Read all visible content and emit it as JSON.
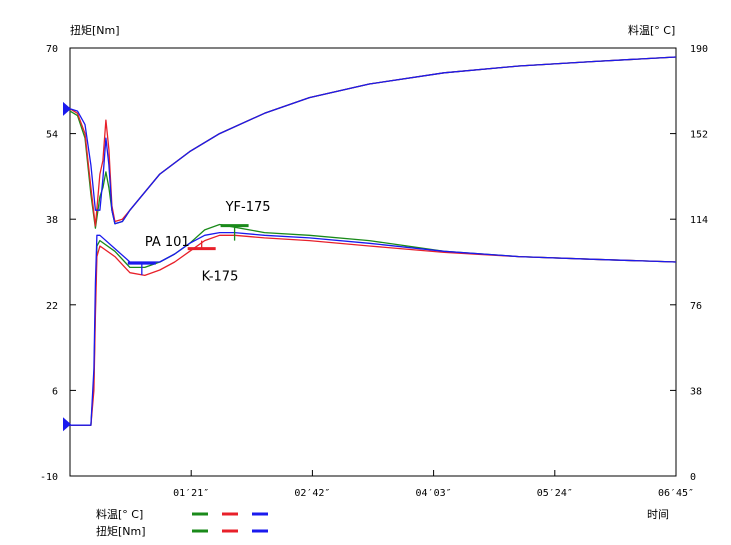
{
  "chart_data": {
    "type": "line",
    "ylabel_left": "扭矩[Nm]",
    "ylabel_right": "料温[° C]",
    "xlabel": "时间",
    "x_range": [
      0,
      405
    ],
    "y_left_range": [
      -10,
      70
    ],
    "y_right_range": [
      0,
      190
    ],
    "x_ticks": [
      {
        "value": 81,
        "label": "01′21″"
      },
      {
        "value": 162,
        "label": "02′42″"
      },
      {
        "value": 243,
        "label": "04′03″"
      },
      {
        "value": 324,
        "label": "05′24″"
      },
      {
        "value": 405,
        "label": "06′45″"
      }
    ],
    "y_left_ticks": [
      "-10",
      "6",
      "22",
      "38",
      "54",
      "70"
    ],
    "y_left_tick_values": [
      -10,
      6,
      22,
      38,
      54,
      70
    ],
    "y_right_ticks": [
      "0",
      "38",
      "76",
      "114",
      "152",
      "190"
    ],
    "y_right_tick_values": [
      0,
      38,
      76,
      114,
      152,
      190
    ],
    "colors": {
      "green": "#1a8a1a",
      "red": "#e8202a",
      "blue": "#1a1aee",
      "marker": "#1a1aee"
    },
    "series": [
      {
        "name": "料温 green",
        "axis": "right",
        "color": "#1a8a1a",
        "x": [
          0,
          5,
          10,
          14,
          17,
          20,
          22,
          24,
          26,
          28,
          30,
          35,
          40,
          50,
          60,
          80,
          100,
          130,
          160,
          200,
          250,
          300,
          350,
          405
        ],
        "values": [
          162,
          160,
          150,
          125,
          110,
          124,
          128,
          135,
          128,
          118,
          112,
          113,
          118,
          126,
          134,
          144,
          152,
          161,
          168,
          174,
          179,
          182,
          184,
          186
        ]
      },
      {
        "name": "料温 red",
        "axis": "right",
        "color": "#e8202a",
        "x": [
          0,
          5,
          10,
          14,
          17,
          20,
          22,
          24,
          26,
          28,
          30,
          35,
          40,
          50,
          60,
          80,
          100,
          130,
          160,
          200,
          250,
          300,
          350,
          405
        ],
        "values": [
          163,
          161,
          152,
          128,
          111,
          134,
          140,
          158,
          145,
          120,
          113,
          114,
          118,
          126,
          134,
          144,
          152,
          161,
          168,
          174,
          179,
          182,
          184,
          186
        ]
      },
      {
        "name": "料温 blue",
        "axis": "right",
        "color": "#1a1aee",
        "x": [
          0,
          5,
          10,
          14,
          17,
          20,
          22,
          24,
          26,
          28,
          30,
          35,
          40,
          50,
          60,
          80,
          100,
          130,
          160,
          200,
          250,
          300,
          350,
          405
        ],
        "values": [
          163,
          162,
          156,
          138,
          118,
          118,
          132,
          150,
          138,
          118,
          112,
          113,
          118,
          126,
          134,
          144,
          152,
          161,
          168,
          174,
          179,
          182,
          184,
          186
        ]
      },
      {
        "name": "扭矩 green",
        "axis": "left",
        "color": "#1a8a1a",
        "x": [
          0,
          12,
          14,
          16,
          17,
          18,
          20,
          30,
          40,
          50,
          60,
          70,
          80,
          90,
          100,
          110,
          130,
          160,
          200,
          250,
          300,
          350,
          405
        ],
        "values": [
          -0.5,
          -0.5,
          -0.5,
          8,
          22,
          33,
          34,
          32,
          29,
          29,
          30,
          31.5,
          33.5,
          36,
          37,
          36.5,
          35.5,
          35,
          34,
          32,
          31,
          30.5,
          30
        ]
      },
      {
        "name": "扭矩 red",
        "axis": "left",
        "color": "#e8202a",
        "x": [
          0,
          12,
          14,
          16,
          17,
          18,
          20,
          30,
          40,
          50,
          60,
          70,
          80,
          90,
          100,
          110,
          130,
          160,
          200,
          250,
          300,
          350,
          405
        ],
        "values": [
          -0.5,
          -0.5,
          -0.5,
          6,
          20,
          31,
          33,
          31,
          28,
          27.5,
          28.5,
          30,
          32,
          34,
          35,
          35,
          34.5,
          34,
          33,
          31.8,
          31,
          30.5,
          30
        ]
      },
      {
        "name": "扭矩 blue",
        "axis": "left",
        "color": "#1a1aee",
        "x": [
          0,
          12,
          14,
          16,
          17,
          18,
          20,
          30,
          40,
          50,
          60,
          70,
          80,
          90,
          100,
          110,
          130,
          160,
          200,
          250,
          300,
          350,
          405
        ],
        "values": [
          -0.5,
          -0.5,
          -0.5,
          10,
          26,
          35,
          35,
          32.5,
          30,
          30,
          30,
          31.5,
          33.5,
          35,
          35.5,
          35.5,
          35,
          34.5,
          33.5,
          32,
          31,
          30.5,
          30
        ]
      }
    ],
    "annotations": [
      {
        "text": "YF-175",
        "x": 104,
        "y": 39.5,
        "color": "#1a8a1a",
        "marker_x": 110,
        "marker_y": 36.8
      },
      {
        "text": "PA 101",
        "x": 50,
        "y": 33,
        "color": "#1a1aee",
        "marker_x": 48,
        "marker_y": 29.8
      },
      {
        "text": "K-175",
        "x": 88,
        "y": 26.5,
        "color": "#e8202a",
        "marker_x": 88,
        "marker_y": 32.5
      }
    ],
    "legend": {
      "row1_label": "料温[° C]",
      "row2_label": "扭矩[Nm]"
    },
    "markers": [
      {
        "axis": "right",
        "value": 163
      },
      {
        "axis": "right",
        "value": 23
      }
    ]
  }
}
